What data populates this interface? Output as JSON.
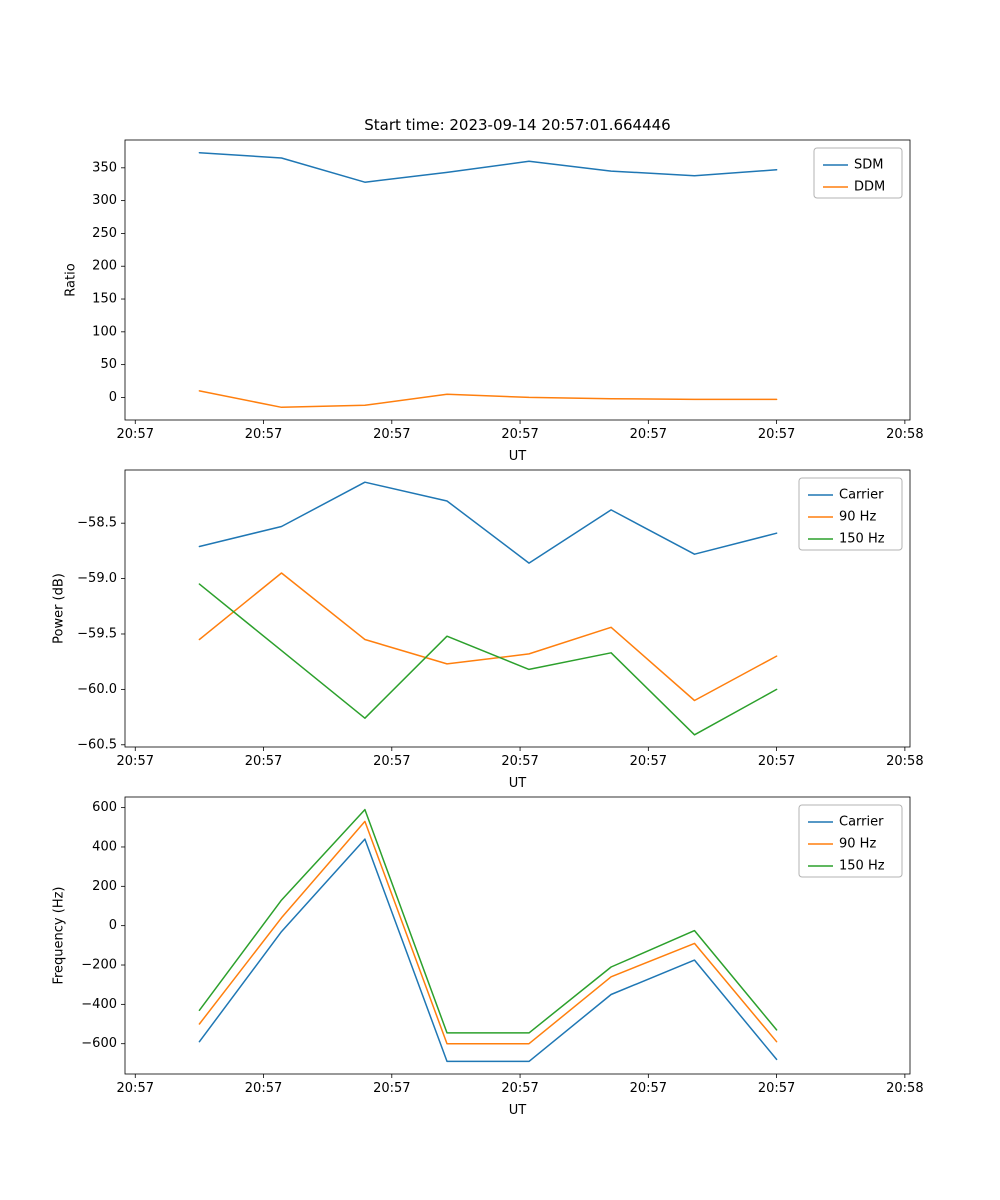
{
  "title": "Start time: 2023-09-14 20:57:01.664446",
  "colors": {
    "blue": "#1f77b4",
    "orange": "#ff7f0e",
    "green": "#2ca02c",
    "axis": "#000000",
    "legend_border": "#b3b3b3",
    "background": "#ffffff"
  },
  "chart_data": [
    {
      "type": "line",
      "title": "Start time: 2023-09-14 20:57:01.664446",
      "xlabel": "UT",
      "ylabel": "Ratio",
      "grid": false,
      "legend_position": "upper right",
      "xlim": [
        -0.8,
        60.4
      ],
      "ylim": [
        -34.4,
        392.4
      ],
      "xticks": {
        "positions": [
          0,
          10,
          20,
          30,
          40,
          50,
          60
        ],
        "labels": [
          "20:57",
          "20:57",
          "20:57",
          "20:57",
          "20:57",
          "20:57",
          "20:58"
        ]
      },
      "yticks": {
        "positions": [
          0,
          50,
          100,
          150,
          200,
          250,
          300,
          350
        ],
        "labels": [
          "0",
          "50",
          "100",
          "150",
          "200",
          "250",
          "300",
          "350"
        ]
      },
      "x_seconds": [
        5,
        11.4,
        17.9,
        24.3,
        30.7,
        37.1,
        43.6,
        50
      ],
      "series": [
        {
          "name": "SDM",
          "color": "#1f77b4",
          "values": [
            373,
            365,
            328,
            343,
            360,
            345,
            338,
            347
          ]
        },
        {
          "name": "DDM",
          "color": "#ff7f0e",
          "values": [
            10,
            -15,
            -12,
            5,
            0,
            -2,
            -3,
            -3
          ]
        }
      ]
    },
    {
      "type": "line",
      "title": "",
      "xlabel": "UT",
      "ylabel": "Power (dB)",
      "grid": false,
      "legend_position": "upper right",
      "xlim": [
        -0.8,
        60.4
      ],
      "ylim": [
        -60.52,
        -58.02
      ],
      "xticks": {
        "positions": [
          0,
          10,
          20,
          30,
          40,
          50,
          60
        ],
        "labels": [
          "20:57",
          "20:57",
          "20:57",
          "20:57",
          "20:57",
          "20:57",
          "20:58"
        ]
      },
      "yticks": {
        "positions": [
          -60.5,
          -60.0,
          -59.5,
          -59.0,
          -58.5
        ],
        "labels": [
          "−60.5",
          "−60.0",
          "−59.5",
          "−59.0",
          "−58.5"
        ]
      },
      "x_seconds": [
        5,
        11.4,
        17.9,
        24.3,
        30.7,
        37.1,
        43.6,
        50
      ],
      "series": [
        {
          "name": "Carrier",
          "color": "#1f77b4",
          "values": [
            -58.71,
            -58.53,
            -58.13,
            -58.3,
            -58.86,
            -58.38,
            -58.78,
            -58.59
          ]
        },
        {
          "name": "90 Hz",
          "color": "#ff7f0e",
          "values": [
            -59.55,
            -58.95,
            -59.55,
            -59.77,
            -59.68,
            -59.44,
            -60.1,
            -59.7
          ]
        },
        {
          "name": "150 Hz",
          "color": "#2ca02c",
          "values": [
            -59.05,
            -59.65,
            -60.26,
            -59.52,
            -59.82,
            -59.67,
            -60.41,
            -60.0
          ]
        }
      ]
    },
    {
      "type": "line",
      "title": "",
      "xlabel": "UT",
      "ylabel": "Frequency (Hz)",
      "grid": false,
      "legend_position": "upper right",
      "xlim": [
        -0.8,
        60.4
      ],
      "ylim": [
        -754,
        654
      ],
      "xticks": {
        "positions": [
          0,
          10,
          20,
          30,
          40,
          50,
          60
        ],
        "labels": [
          "20:57",
          "20:57",
          "20:57",
          "20:57",
          "20:57",
          "20:57",
          "20:58"
        ]
      },
      "yticks": {
        "positions": [
          -600,
          -400,
          -200,
          0,
          200,
          400,
          600
        ],
        "labels": [
          "−600",
          "−400",
          "−200",
          "0",
          "200",
          "400",
          "600"
        ]
      },
      "x_seconds": [
        5,
        11.4,
        17.9,
        24.3,
        30.7,
        37.1,
        43.6,
        50
      ],
      "series": [
        {
          "name": "Carrier",
          "color": "#1f77b4",
          "values": [
            -590,
            -30,
            440,
            -690,
            -690,
            -350,
            -175,
            -680
          ]
        },
        {
          "name": "90 Hz",
          "color": "#ff7f0e",
          "values": [
            -500,
            40,
            530,
            -600,
            -600,
            -260,
            -90,
            -590
          ]
        },
        {
          "name": "150 Hz",
          "color": "#2ca02c",
          "values": [
            -430,
            130,
            590,
            -545,
            -545,
            -210,
            -25,
            -530
          ]
        }
      ]
    }
  ]
}
